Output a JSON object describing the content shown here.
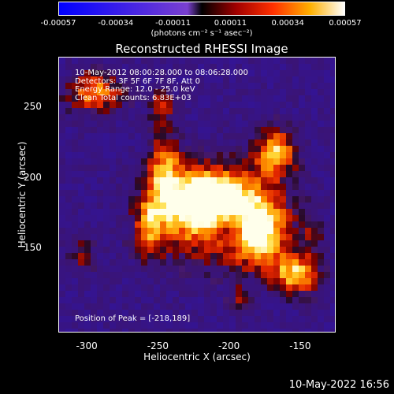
{
  "colorbar": {
    "ticks": [
      "-0.00057",
      "-0.00034",
      "-0.00011",
      "0.00011",
      "0.00034",
      "0.00057"
    ],
    "unit": "(photons cm⁻² s⁻¹ asec⁻²)",
    "range": [
      -0.00057,
      0.00057
    ]
  },
  "chart_data": {
    "type": "heatmap",
    "title": "Reconstructed RHESSI Image",
    "xlabel": "Heliocentric X (arcsec)",
    "ylabel": "Heliocentric Y (arcsec)",
    "xlim": [
      -320,
      -125
    ],
    "ylim": [
      90,
      285
    ],
    "xticks": [
      "-300",
      "-250",
      "-200",
      "-150"
    ],
    "yticks": [
      "150",
      "200",
      "250"
    ],
    "info": [
      "10-May-2012 08:00:28.000 to 08:06:28.000",
      "Detectors: 3F 5F 6F 7F 8F, Att 0",
      "Energy Range: 12.0 - 25.0 keV",
      "Clean    Total counts: 6.83E+03"
    ],
    "peak_label": "Position of Peak = [-218,189]",
    "peak": [
      -218,
      189
    ]
  },
  "timestamp": "10-May-2022 16:56"
}
